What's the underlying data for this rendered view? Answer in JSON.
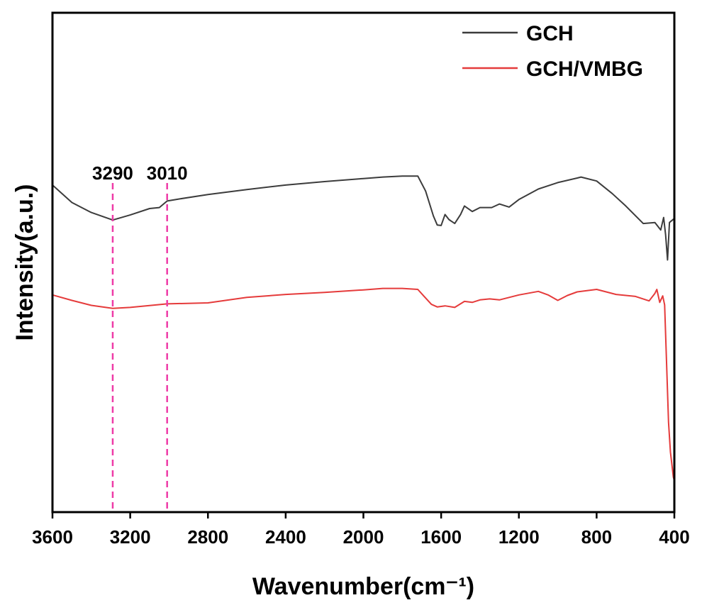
{
  "chart_data": {
    "type": "line",
    "xlabel": "Wavenumber(cm⁻¹)",
    "ylabel": "Intensity(a.u.)",
    "xlim": [
      3600,
      400
    ],
    "ylim": [
      0,
      100
    ],
    "x_ticks": [
      "3600",
      "3200",
      "2800",
      "2400",
      "2000",
      "1600",
      "1200",
      "800",
      "400"
    ],
    "y_ticks_shown": false,
    "grid": false,
    "legend_position": "top-right",
    "series": [
      {
        "name": "GCH",
        "color": "#3c3c3c",
        "points": [
          [
            3600,
            65.5
          ],
          [
            3500,
            62
          ],
          [
            3400,
            60
          ],
          [
            3290,
            58.5
          ],
          [
            3200,
            59.5
          ],
          [
            3100,
            60.8
          ],
          [
            3050,
            61.0
          ],
          [
            3010,
            62.3
          ],
          [
            2950,
            62.7
          ],
          [
            2800,
            63.6
          ],
          [
            2600,
            64.6
          ],
          [
            2400,
            65.5
          ],
          [
            2200,
            66.2
          ],
          [
            2000,
            66.8
          ],
          [
            1900,
            67.1
          ],
          [
            1800,
            67.3
          ],
          [
            1720,
            67.3
          ],
          [
            1680,
            64.3
          ],
          [
            1640,
            59.3
          ],
          [
            1620,
            57.5
          ],
          [
            1600,
            57.4
          ],
          [
            1580,
            59.6
          ],
          [
            1560,
            58.6
          ],
          [
            1530,
            57.8
          ],
          [
            1500,
            59.6
          ],
          [
            1480,
            61.3
          ],
          [
            1440,
            60.2
          ],
          [
            1400,
            61.0
          ],
          [
            1340,
            61.0
          ],
          [
            1300,
            61.7
          ],
          [
            1250,
            61.1
          ],
          [
            1200,
            62.6
          ],
          [
            1100,
            64.7
          ],
          [
            1000,
            66.0
          ],
          [
            900,
            66.9
          ],
          [
            880,
            67.1
          ],
          [
            800,
            66.3
          ],
          [
            720,
            63.8
          ],
          [
            650,
            61.3
          ],
          [
            560,
            57.8
          ],
          [
            500,
            58.0
          ],
          [
            470,
            56.5
          ],
          [
            455,
            59.0
          ],
          [
            445,
            55.5
          ],
          [
            435,
            50.5
          ],
          [
            425,
            58.0
          ],
          [
            410,
            58.5
          ],
          [
            400,
            58.8
          ]
        ]
      },
      {
        "name": "GCH/VMBG",
        "color": "#e53b3b",
        "points": [
          [
            3600,
            43.5
          ],
          [
            3500,
            42.4
          ],
          [
            3400,
            41.4
          ],
          [
            3290,
            40.8
          ],
          [
            3200,
            41.0
          ],
          [
            3010,
            41.7
          ],
          [
            2800,
            41.9
          ],
          [
            2600,
            43.0
          ],
          [
            2400,
            43.6
          ],
          [
            2200,
            44.0
          ],
          [
            2000,
            44.5
          ],
          [
            1900,
            44.8
          ],
          [
            1800,
            44.8
          ],
          [
            1720,
            44.6
          ],
          [
            1690,
            43.3
          ],
          [
            1650,
            41.6
          ],
          [
            1620,
            41.1
          ],
          [
            1580,
            41.3
          ],
          [
            1530,
            41.0
          ],
          [
            1480,
            42.2
          ],
          [
            1440,
            42.0
          ],
          [
            1400,
            42.5
          ],
          [
            1350,
            42.7
          ],
          [
            1300,
            42.5
          ],
          [
            1200,
            43.5
          ],
          [
            1100,
            44.2
          ],
          [
            1050,
            43.5
          ],
          [
            1000,
            42.4
          ],
          [
            950,
            43.4
          ],
          [
            900,
            44.1
          ],
          [
            800,
            44.6
          ],
          [
            700,
            43.6
          ],
          [
            600,
            43.2
          ],
          [
            530,
            42.3
          ],
          [
            500,
            43.8
          ],
          [
            490,
            44.6
          ],
          [
            475,
            42.0
          ],
          [
            460,
            43.3
          ],
          [
            450,
            41.5
          ],
          [
            440,
            30
          ],
          [
            430,
            18
          ],
          [
            420,
            12
          ],
          [
            405,
            7
          ],
          [
            400,
            6.3
          ]
        ]
      }
    ],
    "annotations": [
      {
        "x": 3290,
        "label": "3290",
        "color": "#ee3ba7"
      },
      {
        "x": 3010,
        "label": "3010",
        "color": "#ee3ba7"
      }
    ]
  }
}
